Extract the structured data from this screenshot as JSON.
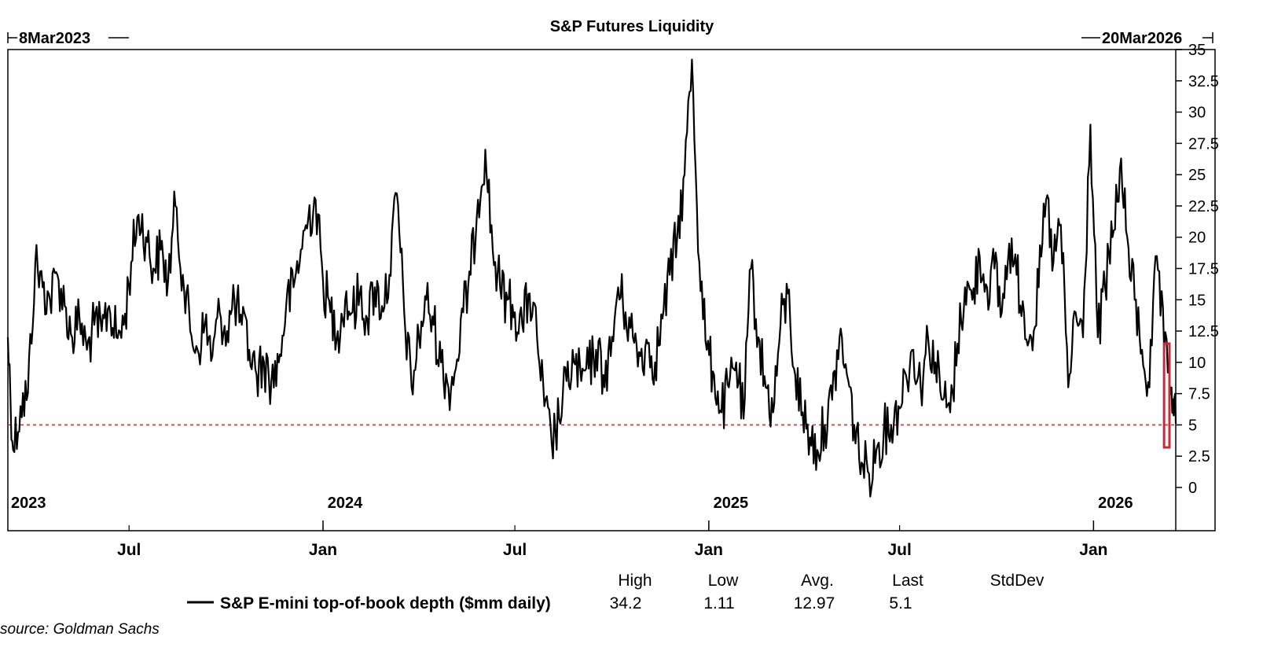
{
  "chart_data": {
    "type": "line",
    "title": "S&P Futures Liquidity",
    "start_label": "8Mar2023",
    "end_label": "20Mar2026",
    "x_start": "2023-03-08",
    "x_end": "2026-03-20",
    "ylim": [
      0,
      35
    ],
    "y_ticks": [
      "35",
      "32.5",
      "30",
      "27.5",
      "25",
      "22.5",
      "20",
      "17.5",
      "15",
      "12.5",
      "10",
      "7.5",
      "5",
      "2.5",
      "0"
    ],
    "y_axis_position": "right",
    "grid": false,
    "year_labels": [
      {
        "label": "2023",
        "date": "2023-03-08"
      },
      {
        "label": "2024",
        "date": "2024-01-01"
      },
      {
        "label": "2025",
        "date": "2025-01-01"
      },
      {
        "label": "2026",
        "date": "2026-01-01"
      }
    ],
    "month_labels": [
      {
        "label": "Jul",
        "date": "2023-07-01"
      },
      {
        "label": "Jan",
        "date": "2024-01-01"
      },
      {
        "label": "Jul",
        "date": "2024-07-01"
      },
      {
        "label": "Jan",
        "date": "2025-01-01"
      },
      {
        "label": "Jul",
        "date": "2025-07-01"
      },
      {
        "label": "Jan",
        "date": "2026-01-01"
      }
    ],
    "reference_line": {
      "y": 5,
      "style": "dashed",
      "color": "#cc3333"
    },
    "highlight_box": {
      "x_from": "2026-02-22",
      "x_to": "2026-03-20",
      "y_from": 3.2,
      "y_to": 11.5,
      "color": "#c82a3a"
    },
    "series": [
      {
        "name": "S&P E-mini top-of-book depth ($mm daily)",
        "color": "#000000",
        "points": [
          [
            "2023-03-08",
            12.0
          ],
          [
            "2023-03-13",
            3.0
          ],
          [
            "2023-03-20",
            6.5
          ],
          [
            "2023-03-27",
            7.5
          ],
          [
            "2023-04-03",
            18.0
          ],
          [
            "2023-04-10",
            16.0
          ],
          [
            "2023-04-17",
            15.0
          ],
          [
            "2023-04-24",
            17.0
          ],
          [
            "2023-05-01",
            14.5
          ],
          [
            "2023-05-08",
            12.0
          ],
          [
            "2023-05-15",
            13.5
          ],
          [
            "2023-05-22",
            11.0
          ],
          [
            "2023-05-29",
            13.0
          ],
          [
            "2023-06-05",
            12.5
          ],
          [
            "2023-06-12",
            14.5
          ],
          [
            "2023-06-19",
            12.0
          ],
          [
            "2023-06-26",
            13.0
          ],
          [
            "2023-07-03",
            18.0
          ],
          [
            "2023-07-10",
            21.8
          ],
          [
            "2023-07-17",
            20.0
          ],
          [
            "2023-07-24",
            17.5
          ],
          [
            "2023-07-31",
            19.0
          ],
          [
            "2023-08-07",
            16.5
          ],
          [
            "2023-08-14",
            22.5
          ],
          [
            "2023-08-21",
            17.0
          ],
          [
            "2023-08-28",
            12.5
          ],
          [
            "2023-09-04",
            11.0
          ],
          [
            "2023-09-11",
            13.0
          ],
          [
            "2023-09-18",
            10.5
          ],
          [
            "2023-09-25",
            14.0
          ],
          [
            "2023-10-02",
            12.5
          ],
          [
            "2023-10-09",
            15.0
          ],
          [
            "2023-10-16",
            13.0
          ],
          [
            "2023-10-23",
            11.0
          ],
          [
            "2023-10-30",
            9.0
          ],
          [
            "2023-11-06",
            10.0
          ],
          [
            "2023-11-13",
            8.5
          ],
          [
            "2023-11-20",
            10.0
          ],
          [
            "2023-11-27",
            14.5
          ],
          [
            "2023-12-04",
            16.0
          ],
          [
            "2023-12-11",
            19.0
          ],
          [
            "2023-12-18",
            21.5
          ],
          [
            "2023-12-25",
            23.0
          ],
          [
            "2024-01-01",
            16.5
          ],
          [
            "2024-01-08",
            14.0
          ],
          [
            "2024-01-15",
            12.5
          ],
          [
            "2024-01-22",
            15.0
          ],
          [
            "2024-01-29",
            14.0
          ],
          [
            "2024-02-05",
            15.5
          ],
          [
            "2024-02-12",
            13.5
          ],
          [
            "2024-02-19",
            16.0
          ],
          [
            "2024-02-26",
            14.5
          ],
          [
            "2024-03-04",
            17.0
          ],
          [
            "2024-03-11",
            23.5
          ],
          [
            "2024-03-18",
            14.0
          ],
          [
            "2024-03-25",
            8.0
          ],
          [
            "2024-04-01",
            12.0
          ],
          [
            "2024-04-08",
            15.0
          ],
          [
            "2024-04-15",
            13.0
          ],
          [
            "2024-04-22",
            10.0
          ],
          [
            "2024-04-29",
            8.0
          ],
          [
            "2024-05-06",
            9.5
          ],
          [
            "2024-05-13",
            14.0
          ],
          [
            "2024-05-20",
            17.0
          ],
          [
            "2024-05-27",
            23.0
          ],
          [
            "2024-06-03",
            27.0
          ],
          [
            "2024-06-10",
            19.0
          ],
          [
            "2024-06-17",
            16.0
          ],
          [
            "2024-06-24",
            15.0
          ],
          [
            "2024-07-01",
            14.0
          ],
          [
            "2024-07-08",
            13.0
          ],
          [
            "2024-07-15",
            15.5
          ],
          [
            "2024-07-22",
            12.0
          ],
          [
            "2024-07-29",
            6.5
          ],
          [
            "2024-08-05",
            3.5
          ],
          [
            "2024-08-12",
            5.5
          ],
          [
            "2024-08-19",
            8.5
          ],
          [
            "2024-08-26",
            10.0
          ],
          [
            "2024-09-02",
            8.5
          ],
          [
            "2024-09-09",
            9.5
          ],
          [
            "2024-09-16",
            11.0
          ],
          [
            "2024-09-23",
            9.0
          ],
          [
            "2024-09-30",
            10.5
          ],
          [
            "2024-10-07",
            16.0
          ],
          [
            "2024-10-14",
            14.0
          ],
          [
            "2024-10-21",
            12.0
          ],
          [
            "2024-10-28",
            10.5
          ],
          [
            "2024-11-04",
            11.5
          ],
          [
            "2024-11-11",
            10.0
          ],
          [
            "2024-11-18",
            13.5
          ],
          [
            "2024-11-25",
            17.0
          ],
          [
            "2024-12-02",
            20.0
          ],
          [
            "2024-12-09",
            25.0
          ],
          [
            "2024-12-16",
            34.2
          ],
          [
            "2024-12-23",
            18.0
          ],
          [
            "2024-12-30",
            11.0
          ],
          [
            "2025-01-06",
            9.0
          ],
          [
            "2025-01-13",
            6.0
          ],
          [
            "2025-01-20",
            8.0
          ],
          [
            "2025-01-27",
            10.0
          ],
          [
            "2025-02-03",
            5.5
          ],
          [
            "2025-02-10",
            17.5
          ],
          [
            "2025-02-17",
            12.0
          ],
          [
            "2025-02-24",
            8.0
          ],
          [
            "2025-03-03",
            6.0
          ],
          [
            "2025-03-10",
            13.0
          ],
          [
            "2025-03-17",
            15.5
          ],
          [
            "2025-03-24",
            9.0
          ],
          [
            "2025-03-31",
            6.0
          ],
          [
            "2025-04-07",
            4.0
          ],
          [
            "2025-04-14",
            3.0
          ],
          [
            "2025-04-21",
            5.0
          ],
          [
            "2025-04-28",
            7.0
          ],
          [
            "2025-05-05",
            12.0
          ],
          [
            "2025-05-12",
            9.0
          ],
          [
            "2025-05-19",
            5.0
          ],
          [
            "2025-05-26",
            2.0
          ],
          [
            "2025-06-02",
            1.11
          ],
          [
            "2025-06-09",
            3.0
          ],
          [
            "2025-06-16",
            4.5
          ],
          [
            "2025-06-23",
            5.0
          ],
          [
            "2025-06-30",
            6.5
          ],
          [
            "2025-07-07",
            9.0
          ],
          [
            "2025-07-14",
            11.0
          ],
          [
            "2025-07-21",
            8.0
          ],
          [
            "2025-07-28",
            12.0
          ],
          [
            "2025-08-04",
            10.0
          ],
          [
            "2025-08-11",
            7.0
          ],
          [
            "2025-08-18",
            6.0
          ],
          [
            "2025-08-25",
            11.5
          ],
          [
            "2025-09-01",
            16.0
          ],
          [
            "2025-09-08",
            15.0
          ],
          [
            "2025-09-15",
            18.5
          ],
          [
            "2025-09-22",
            16.0
          ],
          [
            "2025-09-29",
            17.5
          ],
          [
            "2025-10-06",
            14.0
          ],
          [
            "2025-10-13",
            19.5
          ],
          [
            "2025-10-20",
            17.0
          ],
          [
            "2025-10-27",
            14.0
          ],
          [
            "2025-11-03",
            12.0
          ],
          [
            "2025-11-10",
            16.0
          ],
          [
            "2025-11-17",
            23.0
          ],
          [
            "2025-11-24",
            18.0
          ],
          [
            "2025-12-01",
            21.0
          ],
          [
            "2025-12-08",
            8.0
          ],
          [
            "2025-12-15",
            14.0
          ],
          [
            "2025-12-22",
            12.0
          ],
          [
            "2025-12-29",
            29.0
          ],
          [
            "2026-01-05",
            12.0
          ],
          [
            "2026-01-12",
            16.0
          ],
          [
            "2026-01-19",
            20.0
          ],
          [
            "2026-01-26",
            25.5
          ],
          [
            "2026-02-02",
            20.0
          ],
          [
            "2026-02-09",
            15.0
          ],
          [
            "2026-02-16",
            11.0
          ],
          [
            "2026-02-23",
            8.0
          ],
          [
            "2026-03-02",
            18.5
          ],
          [
            "2026-03-09",
            11.0
          ],
          [
            "2026-03-16",
            8.0
          ],
          [
            "2026-03-20",
            5.1
          ]
        ]
      }
    ],
    "legend_stats": {
      "headers": [
        "High",
        "Low",
        "Avg.",
        "Last",
        "StdDev"
      ],
      "values": [
        "34.2",
        "1.11",
        "12.97",
        "5.1",
        ""
      ]
    },
    "source": "source: Goldman Sachs"
  }
}
